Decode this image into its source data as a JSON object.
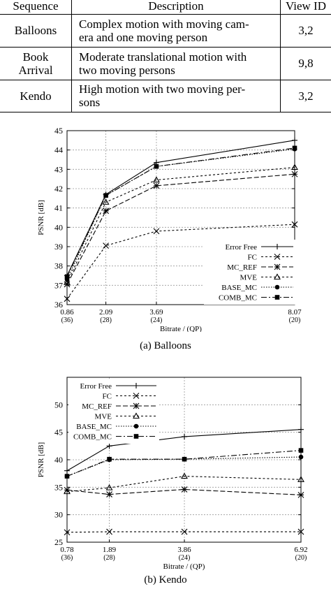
{
  "table": {
    "headers": [
      "Sequence",
      "Description",
      "View ID"
    ],
    "rows": [
      {
        "sequence": "Balloons",
        "description": [
          "Complex motion with moving cam-",
          "era and one moving person"
        ],
        "view_id": "3,2"
      },
      {
        "sequence": [
          "Book",
          "Arrival"
        ],
        "description": [
          "Moderate translational motion with",
          "two moving persons"
        ],
        "view_id": "9,8"
      },
      {
        "sequence": "Kendo",
        "description": [
          "High motion with two moving per-",
          "sons"
        ],
        "view_id": "3,2"
      }
    ]
  },
  "captions": {
    "a": "(a)  Balloons",
    "b": "(b)  Kendo"
  },
  "chart_data": [
    {
      "type": "line",
      "ylabel": "PSNR [dB]",
      "xlabel": "Bitrate / (QP)",
      "x": [
        0.86,
        2.09,
        3.69,
        8.07
      ],
      "x_tick_labels": [
        "0.86",
        "2.09",
        "3.69",
        "8.07"
      ],
      "x_tick_qp": [
        "(36)",
        "(28)",
        "(24)",
        "(20)"
      ],
      "xlim": [
        0.86,
        8.07
      ],
      "ylim": [
        36,
        45
      ],
      "yticks": [
        36,
        37,
        38,
        39,
        40,
        41,
        42,
        43,
        44,
        45
      ],
      "grid": true,
      "legend_position": "bottom-right",
      "series": [
        {
          "name": "Error Free",
          "values": [
            37.5,
            41.7,
            43.35,
            44.5
          ]
        },
        {
          "name": "FC",
          "values": [
            36.3,
            39.05,
            39.8,
            40.15
          ]
        },
        {
          "name": "MC_REF",
          "values": [
            37.05,
            40.85,
            42.15,
            42.75
          ]
        },
        {
          "name": "MVE",
          "values": [
            37.15,
            41.3,
            42.45,
            43.1
          ]
        },
        {
          "name": "BASE_MC",
          "values": [
            37.3,
            41.65,
            43.15,
            44.05
          ]
        },
        {
          "name": "COMB_MC",
          "values": [
            37.45,
            41.65,
            43.15,
            44.1
          ]
        }
      ]
    },
    {
      "type": "line",
      "ylabel": "PSNR [dB]",
      "xlabel": "Bitrate / (QP)",
      "x": [
        0.78,
        1.89,
        3.86,
        6.92
      ],
      "x_tick_labels": [
        "0.78",
        "1.89",
        "3.86",
        "6.92"
      ],
      "x_tick_qp": [
        "(36)",
        "(28)",
        "(24)",
        "(20)"
      ],
      "xlim": [
        0.78,
        6.92
      ],
      "ylim": [
        25,
        55
      ],
      "yticks": [
        25,
        30,
        35,
        40,
        45,
        50
      ],
      "grid": true,
      "legend_position": "top-left",
      "series": [
        {
          "name": "Error Free",
          "values": [
            38,
            42.5,
            44.2,
            45.5
          ]
        },
        {
          "name": "FC",
          "values": [
            26.8,
            26.9,
            26.9,
            26.9
          ]
        },
        {
          "name": "MC_REF",
          "values": [
            34.5,
            33.7,
            34.6,
            33.6
          ]
        },
        {
          "name": "MVE",
          "values": [
            34.2,
            34.9,
            37.0,
            36.4
          ]
        },
        {
          "name": "BASE_MC",
          "values": [
            37.0,
            40.0,
            40.1,
            40.5
          ]
        },
        {
          "name": "COMB_MC",
          "values": [
            37.0,
            40.1,
            40.1,
            41.7
          ]
        }
      ]
    }
  ],
  "styles": {
    "dash": [
      "",
      "3,3",
      "7,3",
      "3,3",
      "1.5,2",
      "8,3,2,3"
    ],
    "markers": [
      "plus",
      "x",
      "star",
      "triangle",
      "circle",
      "square"
    ]
  }
}
